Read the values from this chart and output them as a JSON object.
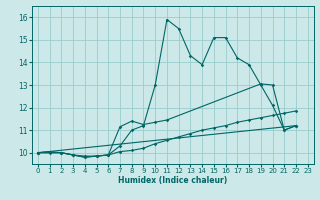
{
  "title": "",
  "xlabel": "Humidex (Indice chaleur)",
  "bg_color": "#cce8e8",
  "line_color": "#006666",
  "grid_color": "#99cccc",
  "xlim": [
    -0.5,
    23.5
  ],
  "ylim": [
    9.5,
    16.5
  ],
  "yticks": [
    10,
    11,
    12,
    13,
    14,
    15,
    16
  ],
  "xticks": [
    0,
    1,
    2,
    3,
    4,
    5,
    6,
    7,
    8,
    9,
    10,
    11,
    12,
    13,
    14,
    15,
    16,
    17,
    18,
    19,
    20,
    21,
    22,
    23
  ],
  "series": [
    {
      "x": [
        0,
        1,
        2,
        3,
        4,
        5,
        6,
        7,
        8,
        9,
        10,
        11,
        12,
        13,
        14,
        15,
        16,
        17,
        18,
        19,
        20,
        21,
        22
      ],
      "y": [
        10.0,
        10.05,
        10.0,
        9.9,
        9.8,
        9.85,
        9.9,
        10.3,
        11.0,
        11.2,
        13.0,
        15.9,
        15.5,
        14.3,
        13.9,
        15.1,
        15.1,
        14.2,
        13.9,
        13.0,
        12.1,
        11.0,
        11.2
      ]
    },
    {
      "x": [
        0,
        2,
        3,
        4,
        5,
        6,
        7,
        8,
        9,
        10,
        11,
        19,
        20,
        21,
        22
      ],
      "y": [
        10.0,
        10.0,
        9.9,
        9.8,
        9.85,
        9.9,
        11.15,
        11.4,
        11.25,
        11.35,
        11.45,
        13.05,
        13.0,
        11.0,
        11.2
      ]
    },
    {
      "x": [
        0,
        1,
        2,
        3,
        4,
        5,
        6,
        7,
        8,
        9,
        10,
        11,
        12,
        13,
        14,
        15,
        16,
        17,
        18,
        19,
        20,
        21,
        22
      ],
      "y": [
        10.0,
        10.0,
        10.0,
        9.9,
        9.85,
        9.85,
        9.9,
        10.05,
        10.1,
        10.2,
        10.4,
        10.55,
        10.7,
        10.85,
        11.0,
        11.1,
        11.2,
        11.35,
        11.45,
        11.55,
        11.65,
        11.75,
        11.85
      ]
    },
    {
      "x": [
        0,
        22
      ],
      "y": [
        10.0,
        11.2
      ]
    }
  ]
}
